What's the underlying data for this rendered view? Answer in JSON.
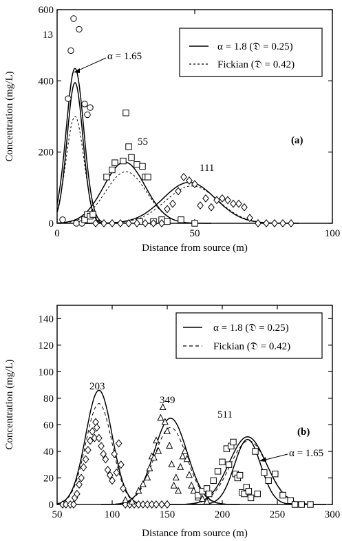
{
  "chart_data": [
    {
      "panel_label": "(a)",
      "type": "scatter",
      "xlabel": "Distance from source (m)",
      "ylabel": "Concentration (mg/L)",
      "xlim": [
        0,
        100
      ],
      "ylim": [
        0,
        600
      ],
      "xticks": [
        "0",
        "50",
        "100"
      ],
      "yticks": [
        "0",
        "200",
        "400",
        "600"
      ],
      "legend": {
        "placement": "top-right",
        "entries": [
          {
            "label": "α = 1.8 (𝔇 = 0.25)",
            "style": "solid"
          },
          {
            "label": "Fickian (𝔇 = 0.42)",
            "style": "dashed"
          }
        ]
      },
      "annotations": {
        "alpha_label": "α = 1.65",
        "time_labels": [
          "13",
          "55",
          "111"
        ]
      },
      "series": [
        {
          "marker": "circle",
          "points": [
            [
              2,
              10
            ],
            [
              4,
              350
            ],
            [
              5,
              485
            ],
            [
              6,
              575
            ],
            [
              8,
              545
            ],
            [
              10,
              335
            ],
            [
              11,
              305
            ],
            [
              12,
              325
            ],
            [
              7,
              0
            ],
            [
              9,
              0
            ]
          ]
        },
        {
          "marker": "square",
          "points": [
            [
              10,
              10
            ],
            [
              11,
              25
            ],
            [
              12,
              20
            ],
            [
              13,
              25
            ],
            [
              18,
              130
            ],
            [
              20,
              150
            ],
            [
              21,
              170
            ],
            [
              24,
              175
            ],
            [
              25,
              310
            ],
            [
              26,
              215
            ],
            [
              27,
              185
            ],
            [
              29,
              165
            ],
            [
              31,
              160
            ],
            [
              32,
              130
            ],
            [
              33,
              130
            ],
            [
              30,
              5
            ],
            [
              35,
              5
            ],
            [
              38,
              10
            ],
            [
              40,
              5
            ],
            [
              45,
              10
            ],
            [
              50,
              0
            ]
          ]
        },
        {
          "marker": "diamond",
          "points": [
            [
              14,
              0
            ],
            [
              17,
              0
            ],
            [
              20,
              0
            ],
            [
              23,
              0
            ],
            [
              26,
              0
            ],
            [
              29,
              0
            ],
            [
              32,
              0
            ],
            [
              35,
              0
            ],
            [
              38,
              0
            ],
            [
              40,
              40
            ],
            [
              42,
              55
            ],
            [
              44,
              90
            ],
            [
              46,
              130
            ],
            [
              48,
              120
            ],
            [
              50,
              110
            ],
            [
              52,
              50
            ],
            [
              54,
              70
            ],
            [
              56,
              45
            ],
            [
              58,
              65
            ],
            [
              60,
              70
            ],
            [
              62,
              65
            ],
            [
              64,
              55
            ],
            [
              66,
              55
            ],
            [
              68,
              45
            ],
            [
              70,
              15
            ],
            [
              73,
              0
            ],
            [
              76,
              0
            ],
            [
              79,
              0
            ],
            [
              82,
              0
            ],
            [
              85,
              0
            ]
          ]
        }
      ],
      "curves": [
        {
          "name": "α = 1.8",
          "style": "solid",
          "peaks": [
            {
              "center": 6.5,
              "height": 435
            },
            {
              "center": 24.5,
              "height": 172
            },
            {
              "center": 48,
              "height": 115
            }
          ]
        },
        {
          "name": "Fickian",
          "style": "dashed",
          "peaks": [
            {
              "center": 6.5,
              "height": 300
            },
            {
              "center": 25,
              "height": 145
            },
            {
              "center": 49,
              "height": 105
            }
          ]
        },
        {
          "name": "α = 1.65",
          "style": "solid",
          "peaks": [
            {
              "center": 6.5,
              "height": 395
            }
          ]
        }
      ]
    },
    {
      "panel_label": "(b)",
      "type": "scatter",
      "xlabel": "Distance from source (m)",
      "ylabel": "Concentration (mg/L)",
      "xlim": [
        50,
        300
      ],
      "ylim": [
        0,
        150
      ],
      "xticks": [
        "50",
        "100",
        "150",
        "200",
        "250",
        "300"
      ],
      "yticks": [
        "0",
        "20",
        "40",
        "60",
        "80",
        "100",
        "120",
        "140"
      ],
      "legend": {
        "placement": "top-right",
        "entries": [
          {
            "label": "α = 1.8 (𝔇 = 0.25)",
            "style": "solid"
          },
          {
            "label": "Fickian (𝔇 = 0.42)",
            "style": "dashed"
          }
        ]
      },
      "annotations": {
        "alpha_label": "α = 1.65",
        "time_labels": [
          "203",
          "349",
          "511"
        ]
      },
      "series": [
        {
          "marker": "diamond",
          "points": [
            [
              55,
              0
            ],
            [
              58,
              0
            ],
            [
              62,
              0
            ],
            [
              65,
              0
            ],
            [
              66,
              5
            ],
            [
              68,
              8
            ],
            [
              70,
              15
            ],
            [
              72,
              20
            ],
            [
              74,
              28
            ],
            [
              76,
              34
            ],
            [
              78,
              41
            ],
            [
              80,
              48
            ],
            [
              82,
              55
            ],
            [
              84,
              50
            ],
            [
              85,
              62
            ],
            [
              86,
              58
            ],
            [
              88,
              50
            ],
            [
              90,
              44
            ],
            [
              92,
              38
            ],
            [
              94,
              34
            ],
            [
              96,
              26
            ],
            [
              98,
              22
            ],
            [
              100,
              18
            ],
            [
              102,
              38
            ],
            [
              104,
              24
            ],
            [
              106,
              46
            ],
            [
              108,
              30
            ],
            [
              110,
              12
            ],
            [
              112,
              0
            ],
            [
              116,
              0
            ],
            [
              120,
              0
            ],
            [
              124,
              0
            ],
            [
              128,
              0
            ],
            [
              132,
              0
            ],
            [
              136,
              0
            ],
            [
              140,
              0
            ],
            [
              145,
              0
            ],
            [
              150,
              0
            ]
          ]
        },
        {
          "marker": "triangle",
          "points": [
            [
              112,
              3
            ],
            [
              118,
              2
            ],
            [
              124,
              10
            ],
            [
              128,
              15
            ],
            [
              132,
              20
            ],
            [
              134,
              27
            ],
            [
              136,
              36
            ],
            [
              138,
              35
            ],
            [
              140,
              48
            ],
            [
              142,
              40
            ],
            [
              144,
              65
            ],
            [
              146,
              73
            ],
            [
              148,
              62
            ],
            [
              150,
              55
            ],
            [
              152,
              44
            ],
            [
              154,
              30
            ],
            [
              156,
              14
            ],
            [
              158,
              20
            ],
            [
              160,
              10
            ],
            [
              162,
              28
            ],
            [
              164,
              36
            ],
            [
              166,
              40
            ],
            [
              168,
              34
            ],
            [
              170,
              22
            ],
            [
              172,
              14
            ],
            [
              174,
              10
            ],
            [
              178,
              5
            ],
            [
              182,
              4
            ],
            [
              186,
              2
            ]
          ]
        },
        {
          "marker": "square",
          "points": [
            [
              178,
              7
            ],
            [
              182,
              10
            ],
            [
              186,
              12
            ],
            [
              188,
              8
            ],
            [
              192,
              18
            ],
            [
              196,
              25
            ],
            [
              200,
              32
            ],
            [
              204,
              42
            ],
            [
              206,
              30
            ],
            [
              208,
              44
            ],
            [
              210,
              47
            ],
            [
              212,
              23
            ],
            [
              214,
              20
            ],
            [
              216,
              22
            ],
            [
              218,
              9
            ],
            [
              220,
              8
            ],
            [
              222,
              13
            ],
            [
              224,
              10
            ],
            [
              226,
              5
            ],
            [
              230,
              40
            ],
            [
              232,
              8
            ],
            [
              238,
              24
            ],
            [
              242,
              18
            ],
            [
              248,
              23
            ],
            [
              255,
              7
            ],
            [
              262,
              3
            ],
            [
              266,
              0
            ],
            [
              272,
              0
            ],
            [
              280,
              0
            ]
          ]
        }
      ],
      "curves": [
        {
          "name": "α = 1.8",
          "style": "solid",
          "peaks": [
            {
              "center": 88,
              "height": 86
            },
            {
              "center": 153,
              "height": 65
            },
            {
              "center": 223,
              "height": 51
            }
          ]
        },
        {
          "name": "Fickian",
          "style": "dashed",
          "peaks": [
            {
              "center": 88,
              "height": 76
            },
            {
              "center": 153,
              "height": 58
            },
            {
              "center": 224,
              "height": 48
            }
          ]
        },
        {
          "name": "α = 1.65",
          "style": "solid",
          "peaks": [
            {
              "center": 223,
              "height": 49
            }
          ]
        }
      ]
    }
  ]
}
